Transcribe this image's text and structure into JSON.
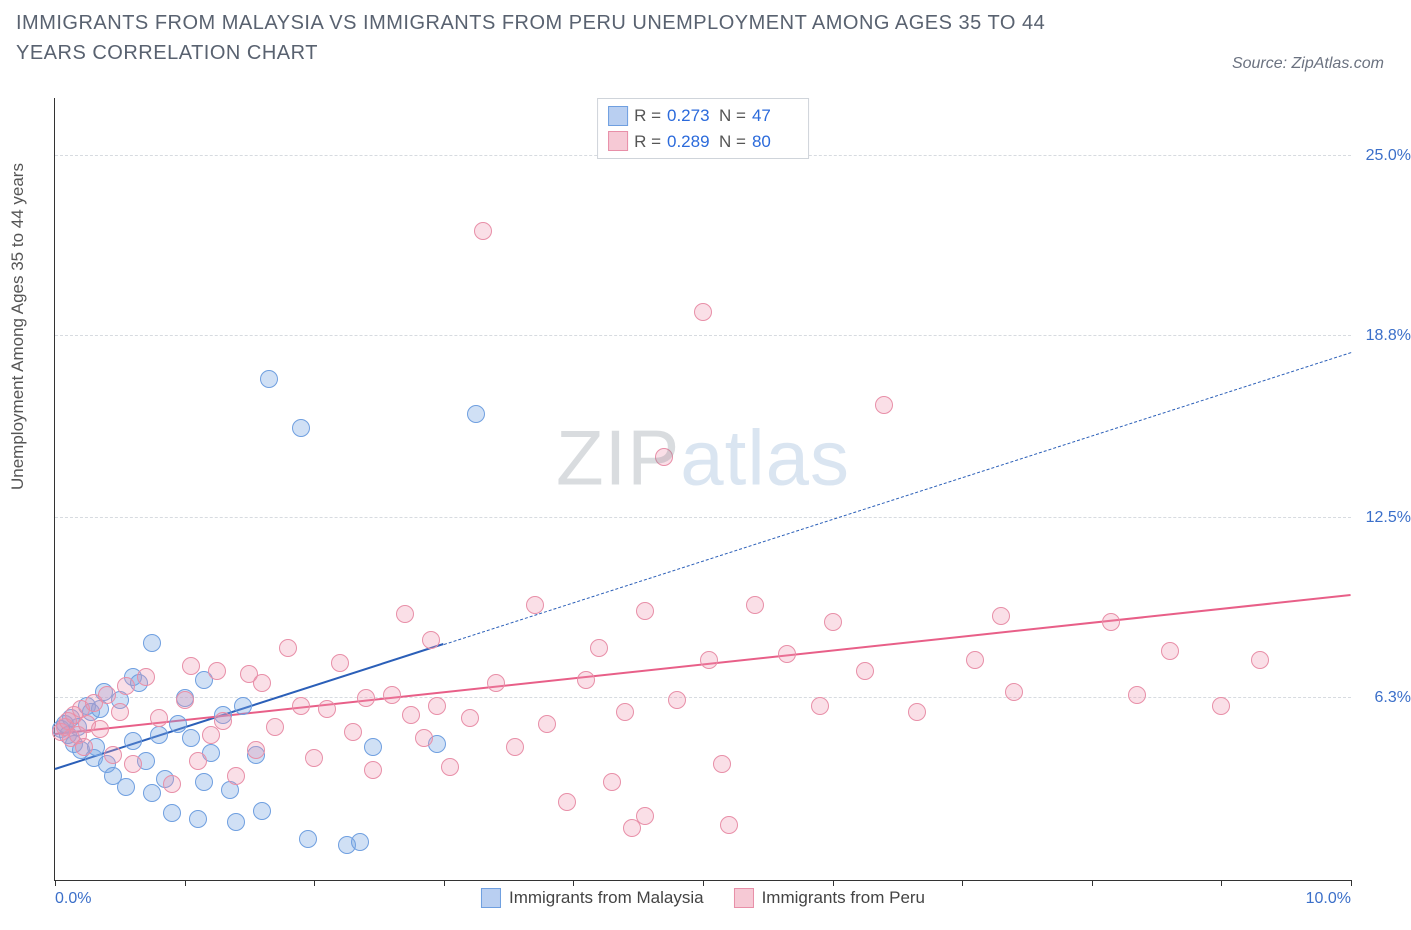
{
  "title": "IMMIGRANTS FROM MALAYSIA VS IMMIGRANTS FROM PERU UNEMPLOYMENT AMONG AGES 35 TO 44 YEARS CORRELATION CHART",
  "source_prefix": "Source: ",
  "source_name": "ZipAtlas.com",
  "watermark_a": "ZIP",
  "watermark_b": "atlas",
  "y_axis_label": "Unemployment Among Ages 35 to 44 years",
  "chart": {
    "type": "scatter",
    "background_color": "#ffffff",
    "grid_color": "#d7dbe0",
    "axis_color": "#333333",
    "tick_label_color": "#3b6fc9",
    "tick_fontsize": 16,
    "xlim": [
      0.0,
      10.0
    ],
    "ylim": [
      0.0,
      27.0
    ],
    "y_ticks": [
      {
        "value": 6.3,
        "label": "6.3%"
      },
      {
        "value": 12.5,
        "label": "12.5%"
      },
      {
        "value": 18.8,
        "label": "18.8%"
      },
      {
        "value": 25.0,
        "label": "25.0%"
      }
    ],
    "x_ticks": [
      0.0,
      1.0,
      2.0,
      3.0,
      4.0,
      5.0,
      6.0,
      7.0,
      8.0,
      9.0,
      10.0
    ],
    "x_tick_labels": {
      "0": "0.0%",
      "10": "10.0%"
    },
    "marker_radius": 9,
    "marker_stroke_width": 1.5,
    "series": [
      {
        "id": "malaysia",
        "label": "Immigrants from Malaysia",
        "fill": "rgba(120,165,225,0.35)",
        "stroke": "#6f9fe0",
        "swatch_fill": "#b9cff1",
        "swatch_stroke": "#6f9fe0",
        "R": "0.273",
        "N": "47",
        "trend": {
          "color": "#2b5fb8",
          "width": 2.5,
          "solid_end_x": 3.0,
          "y_at_x0": 3.8,
          "y_at_x10": 18.2
        },
        "points": [
          [
            0.05,
            5.2
          ],
          [
            0.08,
            5.4
          ],
          [
            0.1,
            5.0
          ],
          [
            0.12,
            5.6
          ],
          [
            0.15,
            4.7
          ],
          [
            0.18,
            5.3
          ],
          [
            0.2,
            4.5
          ],
          [
            0.25,
            6.0
          ],
          [
            0.28,
            5.8
          ],
          [
            0.3,
            4.2
          ],
          [
            0.32,
            4.6
          ],
          [
            0.35,
            5.9
          ],
          [
            0.38,
            6.5
          ],
          [
            0.4,
            4.0
          ],
          [
            0.45,
            3.6
          ],
          [
            0.5,
            6.2
          ],
          [
            0.55,
            3.2
          ],
          [
            0.6,
            4.8
          ],
          [
            0.6,
            7.0
          ],
          [
            0.65,
            6.8
          ],
          [
            0.7,
            4.1
          ],
          [
            0.75,
            3.0
          ],
          [
            0.75,
            8.2
          ],
          [
            0.8,
            5.0
          ],
          [
            0.85,
            3.5
          ],
          [
            0.9,
            2.3
          ],
          [
            0.95,
            5.4
          ],
          [
            1.0,
            6.3
          ],
          [
            1.05,
            4.9
          ],
          [
            1.1,
            2.1
          ],
          [
            1.15,
            3.4
          ],
          [
            1.15,
            6.9
          ],
          [
            1.2,
            4.4
          ],
          [
            1.3,
            5.7
          ],
          [
            1.35,
            3.1
          ],
          [
            1.4,
            2.0
          ],
          [
            1.45,
            6.0
          ],
          [
            1.55,
            4.3
          ],
          [
            1.6,
            2.4
          ],
          [
            1.65,
            17.3
          ],
          [
            1.9,
            15.6
          ],
          [
            1.95,
            1.4
          ],
          [
            2.25,
            1.2
          ],
          [
            2.35,
            1.3
          ],
          [
            2.45,
            4.6
          ],
          [
            2.95,
            4.7
          ],
          [
            3.25,
            16.1
          ]
        ]
      },
      {
        "id": "peru",
        "label": "Immigrants from Peru",
        "fill": "rgba(240,150,175,0.30)",
        "stroke": "#e88fa8",
        "swatch_fill": "#f6c9d5",
        "swatch_stroke": "#e88fa8",
        "R": "0.289",
        "N": "80",
        "trend": {
          "color": "#e85f88",
          "width": 2.5,
          "solid_end_x": 10.0,
          "y_at_x0": 5.0,
          "y_at_x10": 9.8
        },
        "points": [
          [
            0.05,
            5.1
          ],
          [
            0.08,
            5.3
          ],
          [
            0.1,
            5.5
          ],
          [
            0.12,
            4.9
          ],
          [
            0.15,
            5.7
          ],
          [
            0.18,
            5.0
          ],
          [
            0.2,
            5.9
          ],
          [
            0.22,
            4.6
          ],
          [
            0.25,
            5.4
          ],
          [
            0.3,
            6.1
          ],
          [
            0.35,
            5.2
          ],
          [
            0.4,
            6.4
          ],
          [
            0.45,
            4.3
          ],
          [
            0.5,
            5.8
          ],
          [
            0.55,
            6.7
          ],
          [
            0.6,
            4.0
          ],
          [
            0.7,
            7.0
          ],
          [
            0.8,
            5.6
          ],
          [
            0.9,
            3.3
          ],
          [
            1.0,
            6.2
          ],
          [
            1.05,
            7.4
          ],
          [
            1.1,
            4.1
          ],
          [
            1.2,
            5.0
          ],
          [
            1.25,
            7.2
          ],
          [
            1.3,
            5.5
          ],
          [
            1.4,
            3.6
          ],
          [
            1.5,
            7.1
          ],
          [
            1.55,
            4.5
          ],
          [
            1.6,
            6.8
          ],
          [
            1.7,
            5.3
          ],
          [
            1.8,
            8.0
          ],
          [
            1.9,
            6.0
          ],
          [
            2.0,
            4.2
          ],
          [
            2.1,
            5.9
          ],
          [
            2.2,
            7.5
          ],
          [
            2.3,
            5.1
          ],
          [
            2.4,
            6.3
          ],
          [
            2.45,
            3.8
          ],
          [
            2.6,
            6.4
          ],
          [
            2.7,
            9.2
          ],
          [
            2.75,
            5.7
          ],
          [
            2.85,
            4.9
          ],
          [
            2.9,
            8.3
          ],
          [
            2.95,
            6.0
          ],
          [
            3.05,
            3.9
          ],
          [
            3.2,
            5.6
          ],
          [
            3.3,
            22.4
          ],
          [
            3.4,
            6.8
          ],
          [
            3.55,
            4.6
          ],
          [
            3.7,
            9.5
          ],
          [
            3.8,
            5.4
          ],
          [
            3.95,
            2.7
          ],
          [
            4.1,
            6.9
          ],
          [
            4.2,
            8.0
          ],
          [
            4.3,
            3.4
          ],
          [
            4.4,
            5.8
          ],
          [
            4.45,
            1.8
          ],
          [
            4.55,
            9.3
          ],
          [
            4.55,
            2.2
          ],
          [
            4.7,
            14.6
          ],
          [
            4.8,
            6.2
          ],
          [
            5.0,
            19.6
          ],
          [
            5.05,
            7.6
          ],
          [
            5.15,
            4.0
          ],
          [
            5.2,
            1.9
          ],
          [
            5.4,
            9.5
          ],
          [
            5.65,
            7.8
          ],
          [
            5.9,
            6.0
          ],
          [
            6.0,
            8.9
          ],
          [
            6.25,
            7.2
          ],
          [
            6.4,
            16.4
          ],
          [
            6.65,
            5.8
          ],
          [
            7.1,
            7.6
          ],
          [
            7.3,
            9.1
          ],
          [
            7.4,
            6.5
          ],
          [
            8.15,
            8.9
          ],
          [
            8.35,
            6.4
          ],
          [
            8.6,
            7.9
          ],
          [
            9.0,
            6.0
          ],
          [
            9.3,
            7.6
          ]
        ]
      }
    ]
  },
  "legend_top": {
    "R_label": "R =",
    "N_label": "N ="
  }
}
